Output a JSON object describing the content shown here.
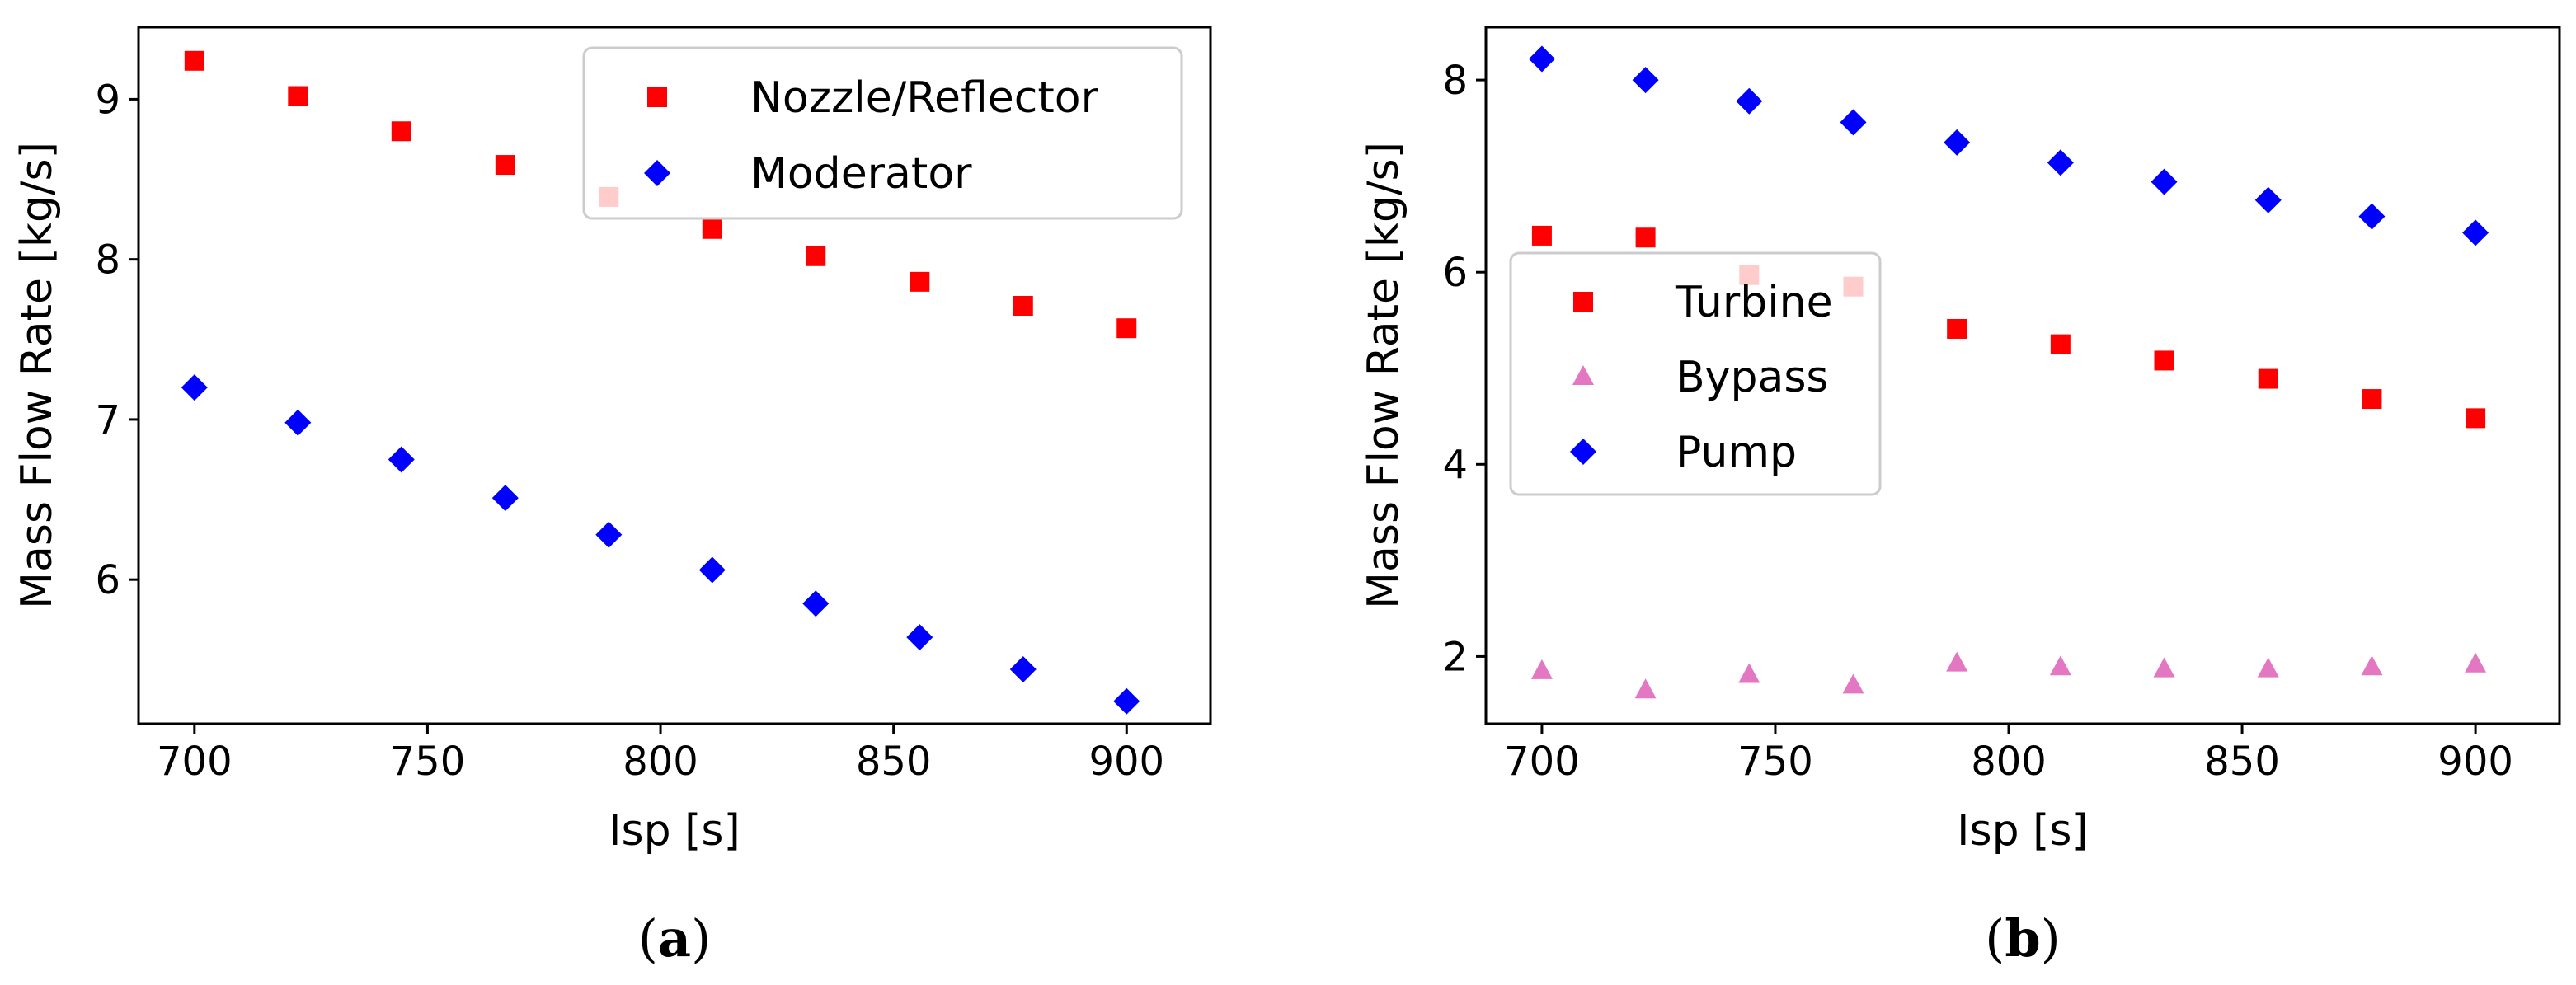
{
  "chart_data": [
    {
      "type": "scatter",
      "panel_label": {
        "open": "(",
        "letter": "a",
        "close": ")"
      },
      "xlabel": "Isp [s]",
      "ylabel": "Mass Flow Rate [kg/s]",
      "xlim": [
        688,
        918
      ],
      "ylim": [
        5.1,
        9.45
      ],
      "xticks": [
        700,
        750,
        800,
        850,
        900
      ],
      "yticks": [
        6,
        7,
        8,
        9
      ],
      "x": [
        700,
        722.2,
        744.4,
        766.7,
        788.9,
        811.1,
        833.3,
        855.6,
        877.8,
        900
      ],
      "legend_position": "top-right",
      "series": [
        {
          "name": "Nozzle/Reflector",
          "marker": "square",
          "color": "#ff0000",
          "values": [
            9.24,
            9.02,
            8.8,
            8.59,
            8.39,
            8.19,
            8.02,
            7.86,
            7.71,
            7.57
          ]
        },
        {
          "name": "Moderator",
          "marker": "diamond",
          "color": "#0000ff",
          "values": [
            7.2,
            6.98,
            6.75,
            6.51,
            6.28,
            6.06,
            5.85,
            5.64,
            5.44,
            5.24
          ]
        }
      ]
    },
    {
      "type": "scatter",
      "panel_label": {
        "open": "(",
        "letter": "b",
        "close": ")"
      },
      "xlabel": "Isp [s]",
      "ylabel": "Mass Flow Rate [kg/s]",
      "xlim": [
        688,
        918
      ],
      "ylim": [
        1.3,
        8.55
      ],
      "xticks": [
        700,
        750,
        800,
        850,
        900
      ],
      "yticks": [
        2,
        4,
        6,
        8
      ],
      "x": [
        700,
        722.2,
        744.4,
        766.7,
        788.9,
        811.1,
        833.3,
        855.6,
        877.8,
        900
      ],
      "legend_position": "center-left",
      "series": [
        {
          "name": "Turbine",
          "marker": "square",
          "color": "#ff0000",
          "values": [
            6.38,
            6.36,
            5.97,
            5.85,
            5.41,
            5.25,
            5.08,
            4.89,
            4.68,
            4.48
          ]
        },
        {
          "name": "Bypass",
          "marker": "triangle",
          "color": "#e377c2",
          "values": [
            1.85,
            1.65,
            1.81,
            1.7,
            1.93,
            1.89,
            1.87,
            1.87,
            1.89,
            1.92
          ]
        },
        {
          "name": "Pump",
          "marker": "diamond",
          "color": "#0000ff",
          "values": [
            8.22,
            8.0,
            7.78,
            7.56,
            7.35,
            7.14,
            6.94,
            6.75,
            6.58,
            6.41
          ]
        }
      ]
    }
  ]
}
